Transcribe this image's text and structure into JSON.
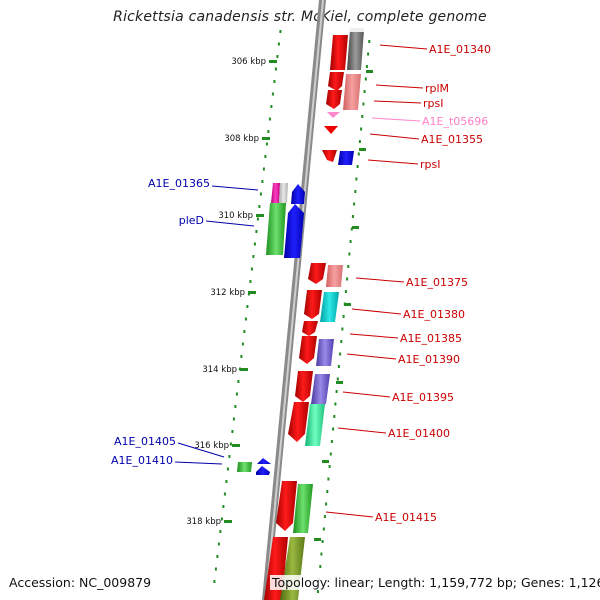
{
  "title": "Rickettsia canadensis str. McKiel, complete genome",
  "footer": {
    "accession": "Accession: NC_009879",
    "topology": "Topology: linear; Length: 1,159,772 bp; Genes: 1,126"
  },
  "colors": {
    "forward_strand_label": "#cc0000",
    "reverse_strand_label": "#0000aa",
    "tick": "#228b22",
    "backbone": "#888888"
  },
  "scale_labels": [
    "306 kbp",
    "308 kbp",
    "310 kbp",
    "312 kbp",
    "314 kbp",
    "316 kbp",
    "318 kbp"
  ],
  "genes_forward": [
    {
      "id": "A1E_01340"
    },
    {
      "id": "rplM"
    },
    {
      "id": "rpsI"
    },
    {
      "id": "A1E_t05696"
    },
    {
      "id": "A1E_01355"
    },
    {
      "id": "rpsI"
    },
    {
      "id": "A1E_01375"
    },
    {
      "id": "A1E_01380"
    },
    {
      "id": "A1E_01385"
    },
    {
      "id": "A1E_01390"
    },
    {
      "id": "A1E_01395"
    },
    {
      "id": "A1E_01400"
    },
    {
      "id": "A1E_01415"
    }
  ],
  "genes_reverse": [
    {
      "id": "A1E_01365"
    },
    {
      "id": "pleD"
    },
    {
      "id": "A1E_01405"
    },
    {
      "id": "A1E_01410"
    }
  ]
}
